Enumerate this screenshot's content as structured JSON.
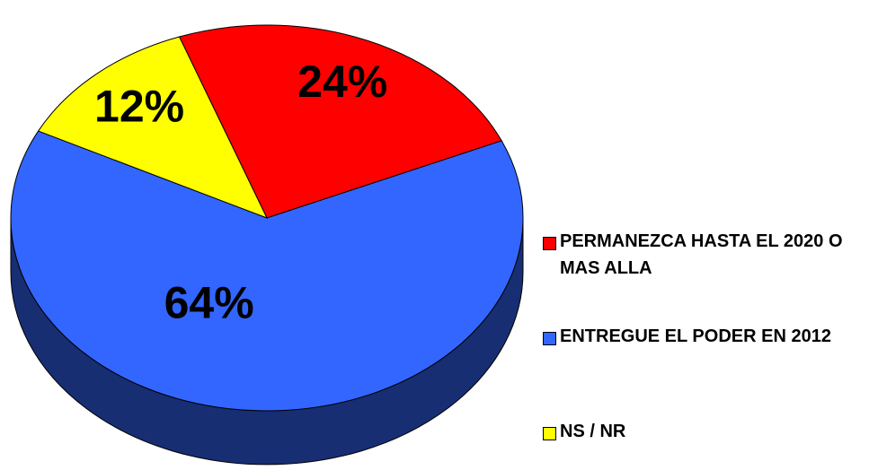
{
  "chart_data": {
    "type": "pie",
    "categories": [
      "PERMANEZCA HASTA EL 2020 O MAS ALLA",
      "ENTREGUE EL PODER EN 2012",
      "NS / NR"
    ],
    "values": [
      24,
      64,
      12
    ],
    "value_labels": [
      "24%",
      "64%",
      "12%"
    ],
    "colors": [
      "#ff0000",
      "#3366ff",
      "#ffff00"
    ],
    "legend": "right"
  }
}
